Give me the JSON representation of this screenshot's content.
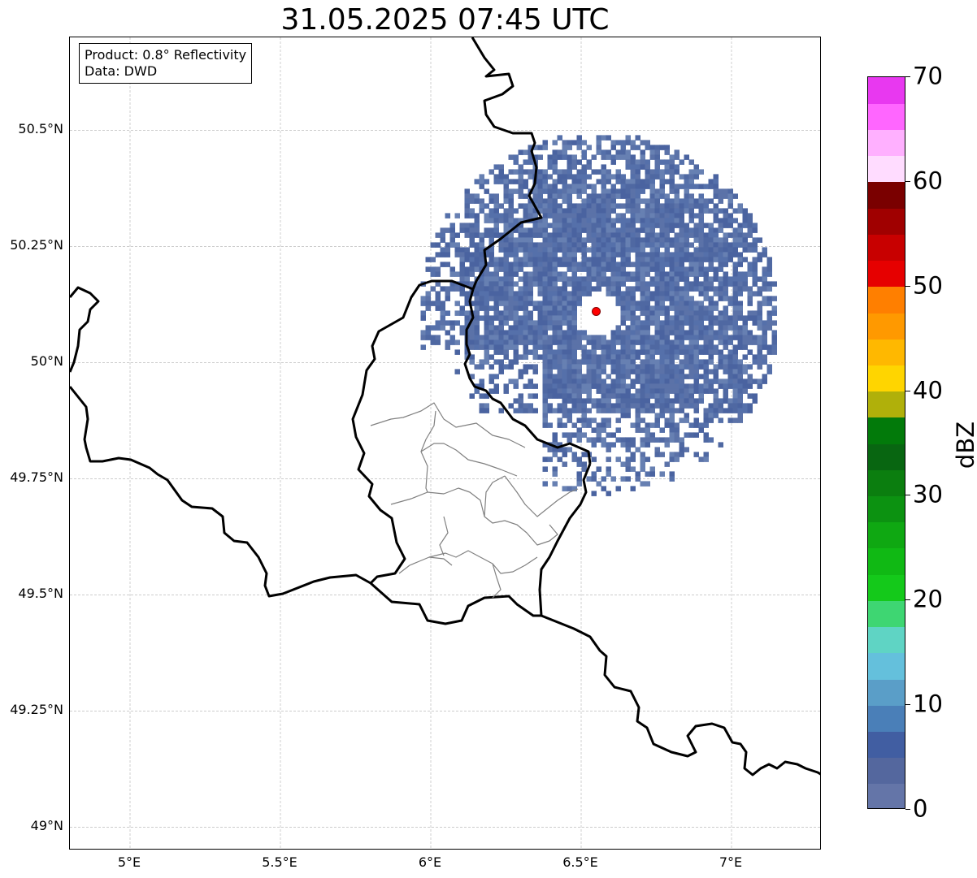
{
  "title": "31.05.2025 07:45 UTC",
  "info_box": {
    "product": "Product: 0.8° Reflectivity",
    "data": "Data: DWD"
  },
  "map": {
    "lon_range": [
      4.8,
      7.3
    ],
    "lat_range": [
      48.95,
      50.7
    ],
    "lat_ticks": [
      {
        "value": 50.5,
        "label": "50.5°N"
      },
      {
        "value": 50.25,
        "label": "50.25°N"
      },
      {
        "value": 50.0,
        "label": "50°N"
      },
      {
        "value": 49.75,
        "label": "49.75°N"
      },
      {
        "value": 49.5,
        "label": "49.5°N"
      },
      {
        "value": 49.25,
        "label": "49.25°N"
      },
      {
        "value": 49.0,
        "label": "49°N"
      }
    ],
    "lon_ticks": [
      {
        "value": 5.0,
        "label": "5°E"
      },
      {
        "value": 5.5,
        "label": "5.5°E"
      },
      {
        "value": 6.0,
        "label": "6°E"
      },
      {
        "value": 6.5,
        "label": "6.5°E"
      },
      {
        "value": 7.0,
        "label": "7°E"
      }
    ],
    "gridlines": true,
    "radar_site": {
      "lon": 6.55,
      "lat": 50.11,
      "color": "#ff0000"
    },
    "radar_range_deg_lon": 1.2,
    "radar_range_deg_lat": 0.39,
    "echo_color": "#5b72a8",
    "max_echo_dbz": 8
  },
  "colorbar": {
    "label": "dBZ",
    "min": 0,
    "max": 70,
    "ticks": [
      {
        "value": 0,
        "label": "0"
      },
      {
        "value": 10,
        "label": "10"
      },
      {
        "value": 20,
        "label": "20"
      },
      {
        "value": 30,
        "label": "30"
      },
      {
        "value": 40,
        "label": "40"
      },
      {
        "value": 50,
        "label": "50"
      },
      {
        "value": 60,
        "label": "60"
      },
      {
        "value": 70,
        "label": "70"
      }
    ],
    "colors": [
      "#6475a8",
      "#54679e",
      "#415ea2",
      "#4a7fb8",
      "#5a9ec8",
      "#64c0dc",
      "#5fd4c4",
      "#3ed672",
      "#14c91a",
      "#10b914",
      "#0fa812",
      "#0c9211",
      "#0b7e0f",
      "#086611",
      "#027a0a",
      "#b0b00a",
      "#ffd500",
      "#ffb800",
      "#ff9900",
      "#ff7f00",
      "#e60000",
      "#c80000",
      "#a00000",
      "#7a0000",
      "#ffdcff",
      "#ffb0ff",
      "#ff66ff",
      "#e838f0"
    ]
  }
}
